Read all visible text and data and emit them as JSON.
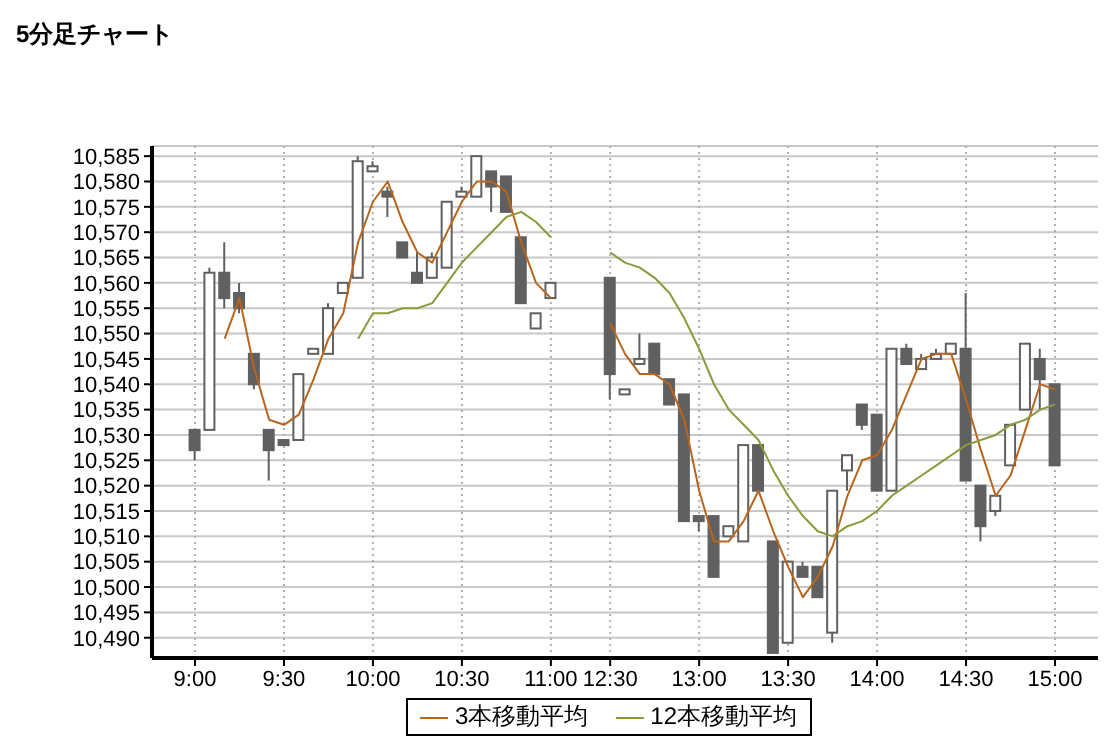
{
  "chart_data": {
    "type": "candlestick",
    "title": "5分足チャート",
    "color": "#606060",
    "categories": [
      "9:00",
      null,
      null,
      null,
      null,
      null,
      "9:30",
      null,
      null,
      null,
      null,
      null,
      "10:00",
      null,
      null,
      null,
      null,
      null,
      "10:30",
      null,
      null,
      null,
      null,
      null,
      "11:00",
      null,
      null,
      null,
      "12:30",
      null,
      null,
      null,
      null,
      null,
      "13:00",
      null,
      null,
      null,
      null,
      null,
      "13:30",
      null,
      null,
      null,
      null,
      null,
      "14:00",
      null,
      null,
      null,
      null,
      null,
      "14:30",
      null,
      null,
      null,
      null,
      null,
      "15:00"
    ],
    "ohlc": [
      [
        10531,
        10531,
        10525,
        10527
      ],
      [
        10531,
        10563,
        10531,
        10562
      ],
      [
        10562,
        10568,
        10555,
        10557
      ],
      [
        10558,
        10560,
        10554,
        10555
      ],
      [
        10546,
        10546,
        10539,
        10540
      ],
      [
        10531,
        10531,
        10521,
        10527
      ],
      [
        10529,
        10529,
        10528,
        10528
      ],
      [
        10529,
        10542,
        10529,
        10542
      ],
      [
        10546,
        10547,
        10546,
        10547
      ],
      [
        10546,
        10556,
        10546,
        10555
      ],
      [
        10558,
        10560,
        10558,
        10560
      ],
      [
        10561,
        10585,
        10561,
        10584
      ],
      [
        10582,
        10584,
        10582,
        10583
      ],
      [
        10578,
        10579,
        10573,
        10577
      ],
      [
        10568,
        10568,
        10565,
        10565
      ],
      [
        10562,
        10566,
        10560,
        10560
      ],
      [
        10561,
        10566,
        10561,
        10565
      ],
      [
        10563,
        10576,
        10563,
        10576
      ],
      [
        10577,
        10579,
        10577,
        10578
      ],
      [
        10577,
        10585,
        10577,
        10585
      ],
      [
        10582,
        10582,
        10574,
        10579
      ],
      [
        10581,
        10581,
        10574,
        10574
      ],
      [
        10569,
        10569,
        10556,
        10556
      ],
      [
        10551,
        10554,
        10551,
        10554
      ],
      [
        10557,
        10560,
        10557,
        10560
      ],
      null,
      null,
      null,
      [
        10561,
        10561,
        10537,
        10542
      ],
      [
        10538,
        10539,
        10538,
        10539
      ],
      [
        10544,
        10550,
        10544,
        10545
      ],
      [
        10548,
        10548,
        10542,
        10542
      ],
      [
        10541,
        10541,
        10536,
        10536
      ],
      [
        10538,
        10538,
        10513,
        10513
      ],
      [
        10514,
        10514,
        10511,
        10513
      ],
      [
        10514,
        10514,
        10502,
        10502
      ],
      [
        10510,
        10512,
        10510,
        10512
      ],
      [
        10509,
        10528,
        10509,
        10528
      ],
      [
        10528,
        10528,
        10519,
        10519
      ],
      [
        10509,
        10509,
        10487,
        10487
      ],
      [
        10489,
        10505,
        10489,
        10505
      ],
      [
        10504,
        10505,
        10502,
        10502
      ],
      [
        10504,
        10504,
        10498,
        10498
      ],
      [
        10491,
        10519,
        10489,
        10519
      ],
      [
        10523,
        10526,
        10519,
        10526
      ],
      [
        10536,
        10536,
        10531,
        10532
      ],
      [
        10534,
        10534,
        10519,
        10519
      ],
      [
        10519,
        10547,
        10519,
        10547
      ],
      [
        10547,
        10548,
        10544,
        10544
      ],
      [
        10543,
        10546,
        10543,
        10545
      ],
      [
        10545,
        10547,
        10545,
        10546
      ],
      [
        10546,
        10548,
        10546,
        10548
      ],
      [
        10547,
        10558,
        10521,
        10521
      ],
      [
        10520,
        10520,
        10509,
        10512
      ],
      [
        10515,
        10518,
        10514,
        10518
      ],
      [
        10524,
        10532,
        10524,
        10532
      ],
      [
        10535,
        10548,
        10535,
        10548
      ],
      [
        10545,
        10547,
        10535,
        10541
      ],
      [
        10540,
        10540,
        10524,
        10524
      ]
    ],
    "series": [
      {
        "type": "line",
        "name": "3本移動平均",
        "color": "#b8651e",
        "values": [
          null,
          null,
          10549,
          10557,
          10543,
          10533,
          10532,
          10534,
          10541,
          10549,
          10554,
          10568,
          10576,
          10580,
          10572,
          10566,
          10564,
          10570,
          10576,
          10580,
          10580,
          10578,
          10568,
          10560,
          10557,
          null,
          null,
          null,
          10552,
          10546,
          10542,
          10542,
          10540,
          10533,
          10519,
          10509,
          10509,
          10513,
          10519,
          10511,
          10504,
          10498,
          10502,
          10508,
          10518,
          10525,
          10526,
          10531,
          10538,
          10545,
          10546,
          10546,
          10537,
          10527,
          10518,
          10522,
          10531,
          10540,
          10539
        ]
      },
      {
        "type": "line",
        "name": "12本移動平均",
        "color": "#8c9a3c",
        "values": [
          null,
          null,
          null,
          null,
          null,
          null,
          null,
          null,
          null,
          null,
          null,
          10549,
          10554,
          10554,
          10555,
          10555,
          10556,
          10560,
          10564,
          10567,
          10570,
          10573,
          10574,
          10572,
          10569,
          null,
          null,
          null,
          10566,
          10564,
          10563,
          10561,
          10558,
          10553,
          10547,
          10540,
          10535,
          10532,
          10529,
          10523,
          10518,
          10514,
          10511,
          10510,
          10512,
          10513,
          10515,
          10518,
          10520,
          10522,
          10524,
          10526,
          10528,
          10529,
          10530,
          10532,
          10533,
          10535,
          10536
        ]
      }
    ],
    "ylim": [
      10486,
      10587
    ],
    "yticks": [
      {
        "value": 10490,
        "label": "10,490"
      },
      {
        "value": 10495,
        "label": "10,495"
      },
      {
        "value": 10500,
        "label": "10,500"
      },
      {
        "value": 10505,
        "label": "10,505"
      },
      {
        "value": 10510,
        "label": "10,510"
      },
      {
        "value": 10515,
        "label": "10,515"
      },
      {
        "value": 10520,
        "label": "10,520"
      },
      {
        "value": 10525,
        "label": "10,525"
      },
      {
        "value": 10530,
        "label": "10,530"
      },
      {
        "value": 10535,
        "label": "10,535"
      },
      {
        "value": 10540,
        "label": "10,540"
      },
      {
        "value": 10545,
        "label": "10,545"
      },
      {
        "value": 10550,
        "label": "10,550"
      },
      {
        "value": 10555,
        "label": "10,555"
      },
      {
        "value": 10560,
        "label": "10,560"
      },
      {
        "value": 10565,
        "label": "10,565"
      },
      {
        "value": 10570,
        "label": "10,570"
      },
      {
        "value": 10575,
        "label": "10,575"
      },
      {
        "value": 10580,
        "label": "10,580"
      },
      {
        "value": 10585,
        "label": "10,585"
      }
    ],
    "grid": true,
    "legend": "bottom"
  }
}
